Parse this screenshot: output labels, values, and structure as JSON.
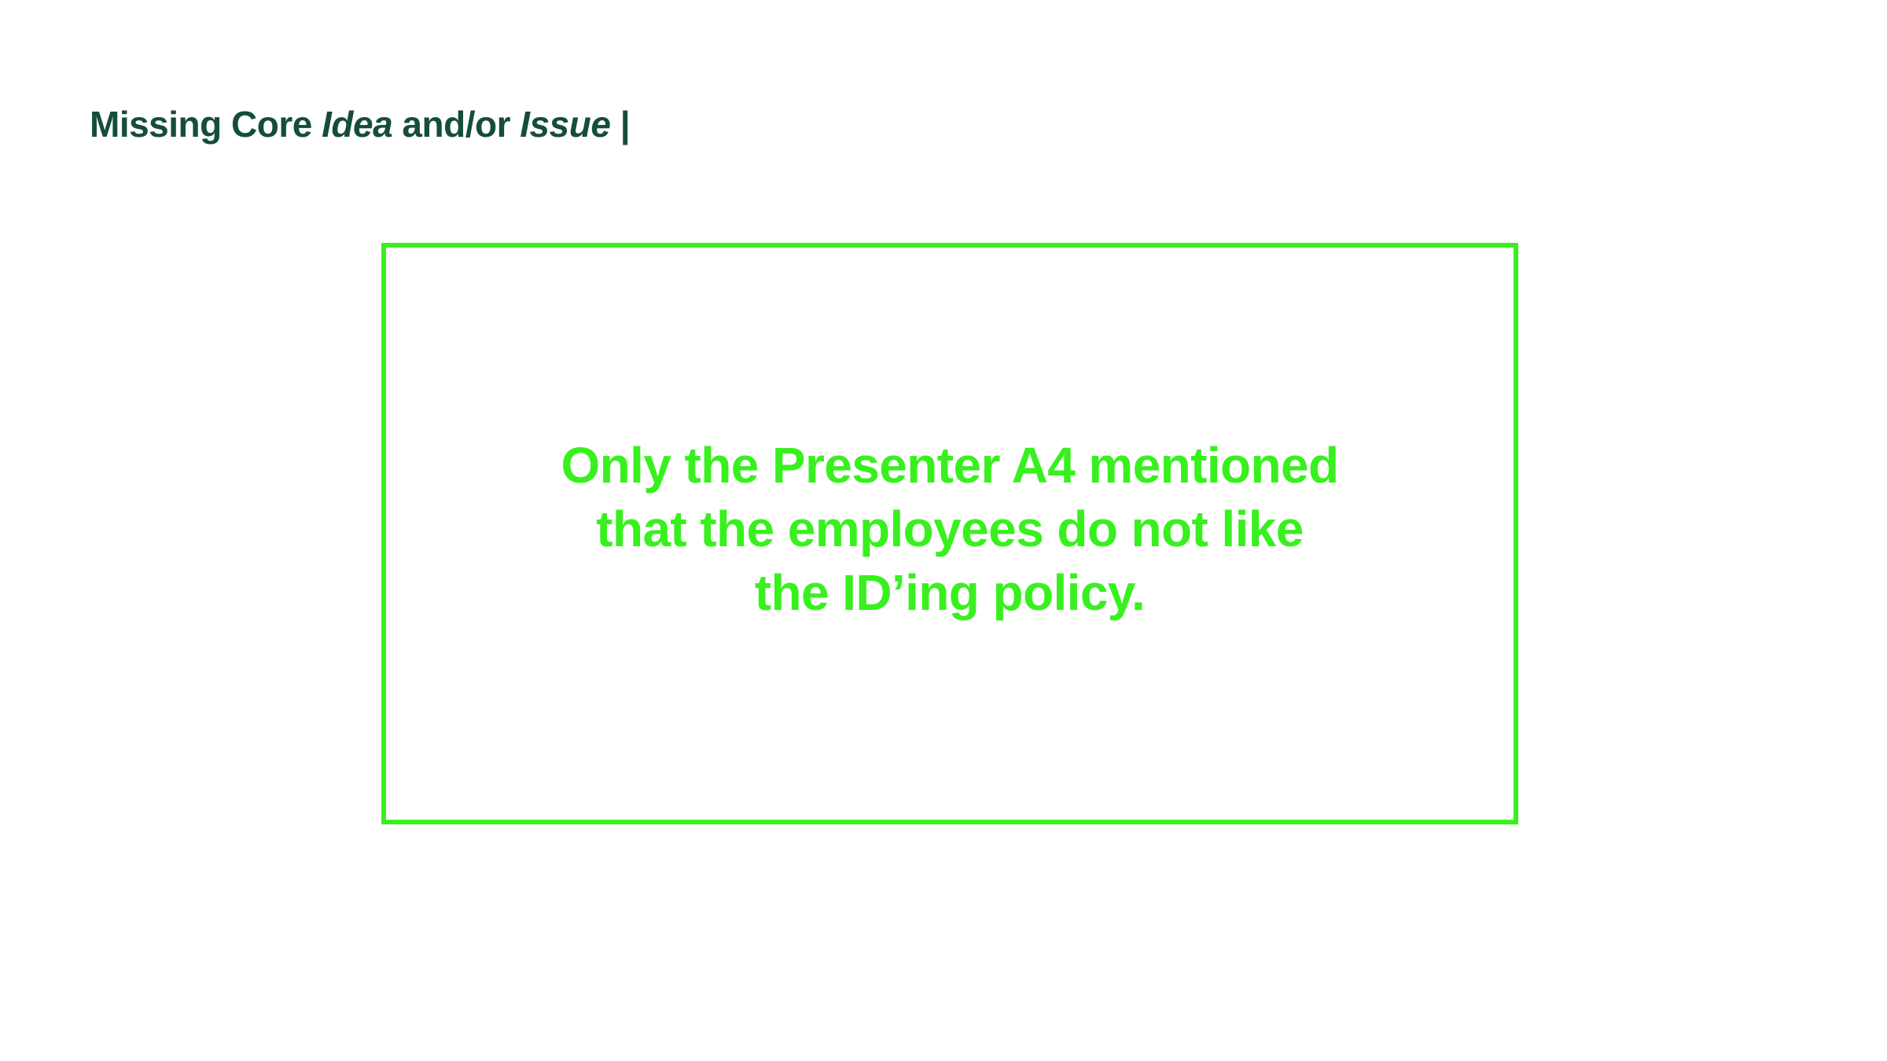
{
  "colors": {
    "title": "#154d3d",
    "accent": "#39f01f",
    "background": "#ffffff"
  },
  "title": {
    "part1": "Missing Core ",
    "idea": "Idea",
    "part2": " and/or ",
    "issue": "Issue",
    "part3": " |"
  },
  "callout": {
    "lines": [
      "Only the Presenter A4 mentioned",
      "that the employees do not like",
      "the ID’ing policy."
    ]
  }
}
